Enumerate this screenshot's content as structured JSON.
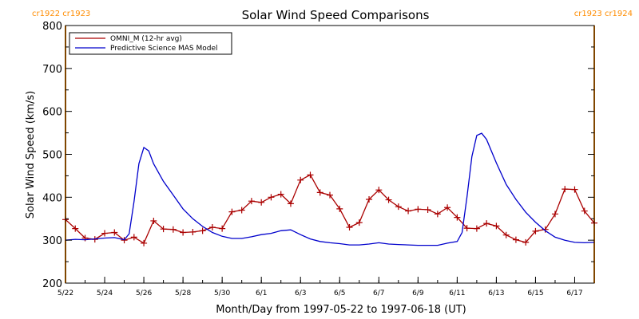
{
  "chart_data": {
    "type": "line",
    "title": "Solar Wind Speed Comparisons",
    "xlabel": "Month/Day from 1997-05-22 to 1997-06-18 (UT)",
    "ylabel": "Solar Wind Speed (km/s)",
    "xlim": [
      "1997-05-22",
      "1997-06-18"
    ],
    "ylim": [
      200,
      800
    ],
    "y_ticks": [
      200,
      300,
      400,
      500,
      600,
      700,
      800
    ],
    "x_ticks": [
      {
        "date": "1997-05-22",
        "label": "5/22"
      },
      {
        "date": "1997-05-24",
        "label": "5/24"
      },
      {
        "date": "1997-05-26",
        "label": "5/26"
      },
      {
        "date": "1997-05-28",
        "label": "5/28"
      },
      {
        "date": "1997-05-30",
        "label": "5/30"
      },
      {
        "date": "1997-06-01",
        "label": "6/1"
      },
      {
        "date": "1997-06-03",
        "label": "6/3"
      },
      {
        "date": "1997-06-05",
        "label": "6/5"
      },
      {
        "date": "1997-06-07",
        "label": "6/7"
      },
      {
        "date": "1997-06-09",
        "label": "6/9"
      },
      {
        "date": "1997-06-11",
        "label": "6/11"
      },
      {
        "date": "1997-06-13",
        "label": "6/13"
      },
      {
        "date": "1997-06-15",
        "label": "6/15"
      },
      {
        "date": "1997-06-17",
        "label": "6/17"
      }
    ],
    "legend": {
      "placement": "top-left",
      "entries": [
        "OMNI_M (12-hr avg)",
        "Predictive Science MAS Model"
      ]
    },
    "grid": false,
    "annotations": [
      {
        "date": "1997-05-22",
        "label": "cr1922 cr1923",
        "side": "left",
        "color": "#ff8c00"
      },
      {
        "date": "1997-06-18",
        "label": "cr1923 cr1924",
        "side": "right",
        "color": "#ff8c00"
      }
    ],
    "series": [
      {
        "name": "OMNI_M (12-hr avg)",
        "color": "#aa0000",
        "marker": "+",
        "points": [
          [
            "1997-05-22 00:00",
            348
          ],
          [
            "1997-05-22 12:00",
            327
          ],
          [
            "1997-05-23 00:00",
            305
          ],
          [
            "1997-05-23 12:00",
            302
          ],
          [
            "1997-05-24 00:00",
            316
          ],
          [
            "1997-05-24 12:00",
            318
          ],
          [
            "1997-05-25 00:00",
            300
          ],
          [
            "1997-05-25 12:00",
            307
          ],
          [
            "1997-05-26 00:00",
            293
          ],
          [
            "1997-05-26 12:00",
            345
          ],
          [
            "1997-05-27 00:00",
            326
          ],
          [
            "1997-05-27 12:00",
            325
          ],
          [
            "1997-05-28 00:00",
            318
          ],
          [
            "1997-05-28 12:00",
            319
          ],
          [
            "1997-05-29 00:00",
            322
          ],
          [
            "1997-05-29 12:00",
            330
          ],
          [
            "1997-05-30 00:00",
            327
          ],
          [
            "1997-05-30 12:00",
            366
          ],
          [
            "1997-05-31 00:00",
            370
          ],
          [
            "1997-05-31 12:00",
            391
          ],
          [
            "1997-06-01 00:00",
            388
          ],
          [
            "1997-06-01 12:00",
            400
          ],
          [
            "1997-06-02 00:00",
            407
          ],
          [
            "1997-06-02 12:00",
            385
          ],
          [
            "1997-06-03 00:00",
            440
          ],
          [
            "1997-06-03 12:00",
            452
          ],
          [
            "1997-06-04 00:00",
            411
          ],
          [
            "1997-06-04 12:00",
            405
          ],
          [
            "1997-06-05 00:00",
            373
          ],
          [
            "1997-06-05 12:00",
            330
          ],
          [
            "1997-06-06 00:00",
            341
          ],
          [
            "1997-06-06 12:00",
            395
          ],
          [
            "1997-06-07 00:00",
            417
          ],
          [
            "1997-06-07 12:00",
            394
          ],
          [
            "1997-06-08 00:00",
            378
          ],
          [
            "1997-06-08 12:00",
            368
          ],
          [
            "1997-06-09 00:00",
            372
          ],
          [
            "1997-06-09 12:00",
            371
          ],
          [
            "1997-06-10 00:00",
            361
          ],
          [
            "1997-06-10 12:00",
            376
          ],
          [
            "1997-06-11 00:00",
            353
          ],
          [
            "1997-06-11 12:00",
            328
          ],
          [
            "1997-06-12 00:00",
            327
          ],
          [
            "1997-06-12 12:00",
            339
          ],
          [
            "1997-06-13 00:00",
            333
          ],
          [
            "1997-06-13 12:00",
            312
          ],
          [
            "1997-06-14 00:00",
            301
          ],
          [
            "1997-06-14 12:00",
            295
          ],
          [
            "1997-06-15 00:00",
            321
          ],
          [
            "1997-06-15 12:00",
            325
          ],
          [
            "1997-06-16 00:00",
            361
          ],
          [
            "1997-06-16 12:00",
            419
          ],
          [
            "1997-06-17 00:00",
            418
          ],
          [
            "1997-06-17 12:00",
            368
          ],
          [
            "1997-06-18 00:00",
            340
          ]
        ]
      },
      {
        "name": "Predictive Science MAS Model",
        "color": "#0000cc",
        "marker": "none",
        "points": [
          [
            "1997-05-22 00:00",
            300
          ],
          [
            "1997-05-22 12:00",
            302
          ],
          [
            "1997-05-23 00:00",
            301
          ],
          [
            "1997-05-23 12:00",
            303
          ],
          [
            "1997-05-24 00:00",
            305
          ],
          [
            "1997-05-24 12:00",
            306
          ],
          [
            "1997-05-25 00:00",
            301
          ],
          [
            "1997-05-25 06:00",
            315
          ],
          [
            "1997-05-25 12:00",
            390
          ],
          [
            "1997-05-25 18:00",
            478
          ],
          [
            "1997-05-26 00:00",
            516
          ],
          [
            "1997-05-26 06:00",
            508
          ],
          [
            "1997-05-26 12:00",
            478
          ],
          [
            "1997-05-27 00:00",
            437
          ],
          [
            "1997-05-27 12:00",
            405
          ],
          [
            "1997-05-28 00:00",
            373
          ],
          [
            "1997-05-28 12:00",
            350
          ],
          [
            "1997-05-29 00:00",
            332
          ],
          [
            "1997-05-29 12:00",
            318
          ],
          [
            "1997-05-30 00:00",
            309
          ],
          [
            "1997-05-30 12:00",
            304
          ],
          [
            "1997-05-31 00:00",
            304
          ],
          [
            "1997-05-31 12:00",
            308
          ],
          [
            "1997-06-01 00:00",
            313
          ],
          [
            "1997-06-01 12:00",
            316
          ],
          [
            "1997-06-02 00:00",
            322
          ],
          [
            "1997-06-02 12:00",
            324
          ],
          [
            "1997-06-03 00:00",
            313
          ],
          [
            "1997-06-03 12:00",
            303
          ],
          [
            "1997-06-04 00:00",
            297
          ],
          [
            "1997-06-04 12:00",
            294
          ],
          [
            "1997-06-05 00:00",
            292
          ],
          [
            "1997-06-05 12:00",
            289
          ],
          [
            "1997-06-06 00:00",
            289
          ],
          [
            "1997-06-06 12:00",
            291
          ],
          [
            "1997-06-07 00:00",
            294
          ],
          [
            "1997-06-07 12:00",
            291
          ],
          [
            "1997-06-08 00:00",
            290
          ],
          [
            "1997-06-08 12:00",
            289
          ],
          [
            "1997-06-09 00:00",
            288
          ],
          [
            "1997-06-09 12:00",
            288
          ],
          [
            "1997-06-10 00:00",
            288
          ],
          [
            "1997-06-10 12:00",
            293
          ],
          [
            "1997-06-11 00:00",
            297
          ],
          [
            "1997-06-11 06:00",
            318
          ],
          [
            "1997-06-11 12:00",
            400
          ],
          [
            "1997-06-11 18:00",
            495
          ],
          [
            "1997-06-12 00:00",
            544
          ],
          [
            "1997-06-12 06:00",
            549
          ],
          [
            "1997-06-12 12:00",
            535
          ],
          [
            "1997-06-13 00:00",
            480
          ],
          [
            "1997-06-13 12:00",
            430
          ],
          [
            "1997-06-14 00:00",
            395
          ],
          [
            "1997-06-14 12:00",
            365
          ],
          [
            "1997-06-15 00:00",
            342
          ],
          [
            "1997-06-15 12:00",
            322
          ],
          [
            "1997-06-16 00:00",
            307
          ],
          [
            "1997-06-16 12:00",
            300
          ],
          [
            "1997-06-17 00:00",
            295
          ],
          [
            "1997-06-17 12:00",
            294
          ],
          [
            "1997-06-18 00:00",
            295
          ]
        ]
      }
    ]
  }
}
